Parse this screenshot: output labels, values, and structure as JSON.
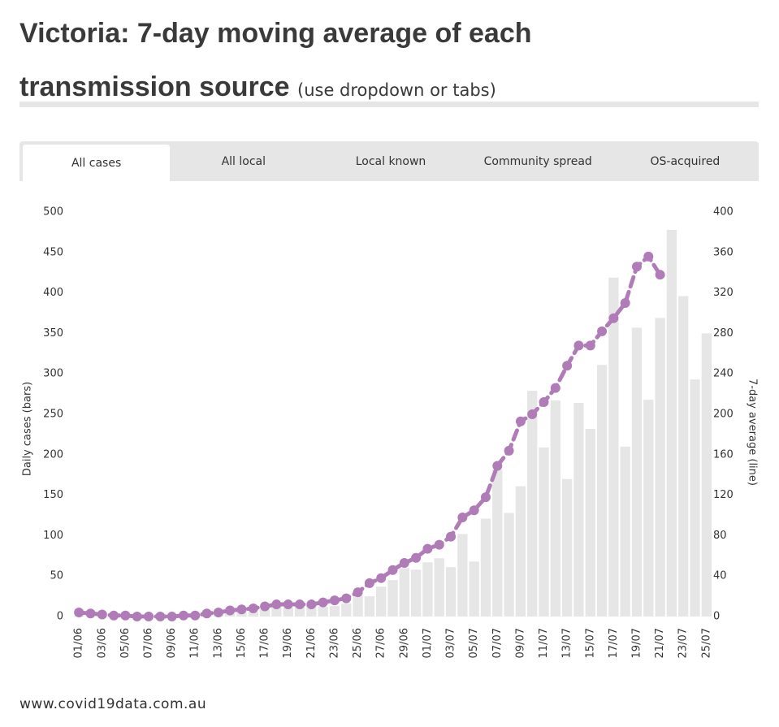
{
  "title": "Victoria: 7-day moving average of each transmission source",
  "subtitle": "(use dropdown or tabs)",
  "tabs": [
    "All cases",
    "All local",
    "Local known",
    "Community spread",
    "OS-acquired"
  ],
  "footer": "www.covid19data.com.au",
  "chart_data": {
    "type": "bar",
    "categories": [
      "01/06",
      null,
      "03/06",
      null,
      "05/06",
      null,
      "07/06",
      null,
      "09/06",
      null,
      "11/06",
      null,
      "13/06",
      null,
      "15/06",
      null,
      "17/06",
      null,
      "19/06",
      null,
      "21/06",
      null,
      "23/06",
      null,
      "25/06",
      null,
      "27/06",
      null,
      "29/06",
      null,
      "01/07",
      null,
      "03/07",
      null,
      "05/07",
      null,
      "07/07",
      null,
      "09/07",
      null,
      "11/07",
      null,
      "13/07",
      null,
      "15/07",
      null,
      "17/07",
      null,
      "19/07",
      null,
      "21/07",
      null,
      "23/07",
      null,
      "25/07"
    ],
    "series": [
      {
        "name": "Daily cases",
        "type": "bar",
        "color": "#e6e6e6",
        "values": [
          1,
          0,
          0,
          2,
          0,
          1,
          0,
          0,
          1,
          2,
          3,
          2,
          5,
          4,
          7,
          6,
          9,
          12,
          11,
          13,
          14,
          12,
          13,
          16,
          26,
          25,
          37,
          45,
          60,
          58,
          67,
          72,
          61,
          102,
          68,
          121,
          182,
          128,
          161,
          279,
          209,
          267,
          170,
          264,
          232,
          311,
          419,
          210,
          357,
          268,
          369,
          478,
          396,
          293,
          350
        ]
      },
      {
        "name": "7-day average",
        "type": "line",
        "axis": "y2",
        "color": "#b07cb7",
        "values": [
          4,
          3,
          2,
          1,
          1,
          0,
          0,
          0,
          0,
          1,
          1,
          3,
          4,
          6,
          7,
          8,
          10,
          12,
          12,
          12,
          12,
          14,
          16,
          18,
          24,
          33,
          38,
          46,
          53,
          58,
          67,
          71,
          79,
          98,
          105,
          118,
          149,
          164,
          193,
          200,
          212,
          226,
          248,
          268,
          268,
          282,
          295,
          310,
          346,
          356,
          338,
          null,
          null,
          null,
          null
        ]
      }
    ],
    "ylabel": "Daily cases (bars)",
    "y2label": "7-day average (line)",
    "ylim": [
      0,
      500
    ],
    "yticks": [
      0,
      50,
      100,
      150,
      200,
      250,
      300,
      350,
      400,
      450,
      500
    ],
    "y2lim": [
      0,
      400
    ],
    "y2ticks": [
      0,
      40,
      80,
      120,
      160,
      200,
      240,
      280,
      320,
      360,
      400
    ],
    "grid": false
  }
}
